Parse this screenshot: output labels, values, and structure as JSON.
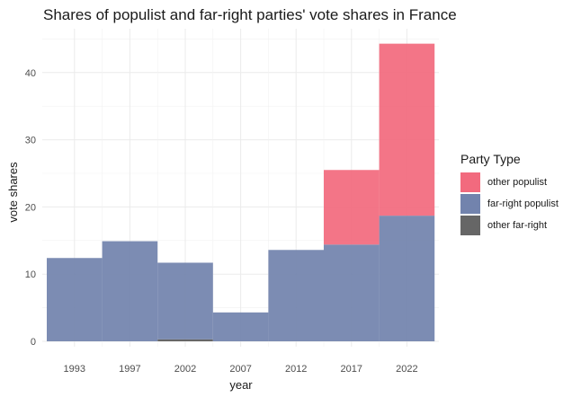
{
  "chart_data": {
    "type": "bar",
    "title": "Shares of populist and far-right parties' vote shares in France",
    "xlabel": "year",
    "ylabel": "vote shares",
    "categories": [
      "1993",
      "1997",
      "2002",
      "2007",
      "2012",
      "2017",
      "2022"
    ],
    "series": [
      {
        "name": "other far-right",
        "color": "#666666",
        "values": [
          0,
          0,
          0.3,
          0,
          0,
          0,
          0
        ]
      },
      {
        "name": "far-right populist",
        "color": "#7283AD",
        "values": [
          12.4,
          14.9,
          11.4,
          4.3,
          13.6,
          14.4,
          18.7
        ]
      },
      {
        "name": "other populist",
        "color": "#F26A7E",
        "values": [
          0,
          0,
          0,
          0,
          0,
          11.1,
          25.6
        ]
      }
    ],
    "stacked": true,
    "ylim": [
      0,
      46
    ],
    "yticks": [
      0,
      10,
      20,
      30,
      40
    ],
    "grid": true,
    "legend_position": "right"
  },
  "legend": {
    "title": "Party Type",
    "items": [
      {
        "label": "other populist",
        "color": "#F26A7E"
      },
      {
        "label": "far-right populist",
        "color": "#7283AD"
      },
      {
        "label": "other far-right",
        "color": "#666666"
      }
    ]
  }
}
